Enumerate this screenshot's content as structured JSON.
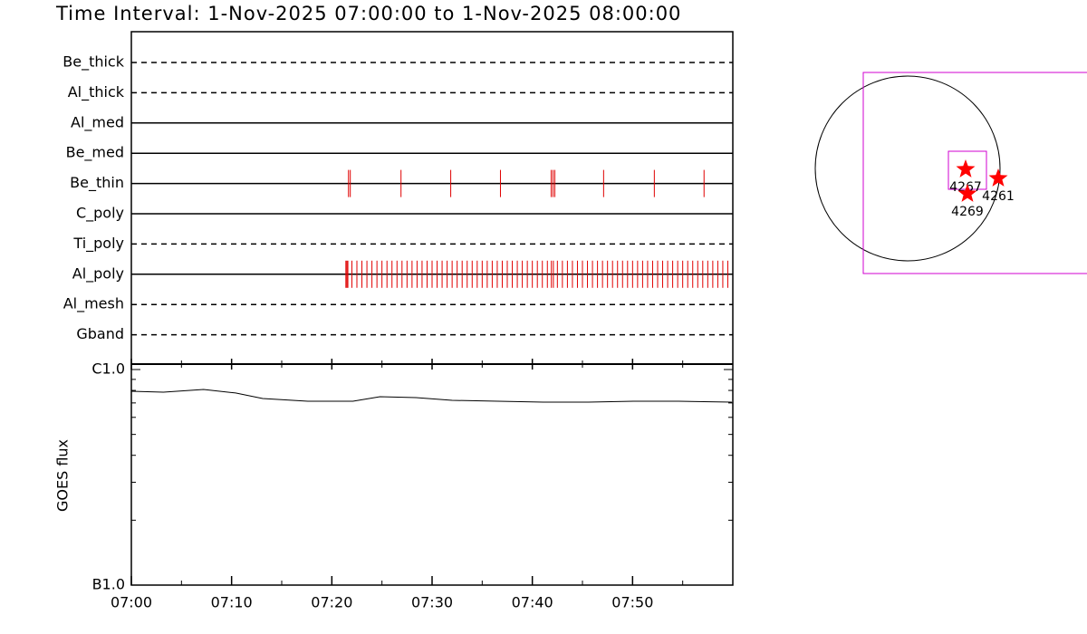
{
  "chart_data": {
    "type": "timeline",
    "title": "Time Interval:  1-Nov-2025 07:00:00 to  1-Nov-2025 08:00:00",
    "xlim": [
      0,
      60
    ],
    "xticks": [
      {
        "value": 0,
        "label": "07:00"
      },
      {
        "value": 10,
        "label": "07:10"
      },
      {
        "value": 20,
        "label": "07:20"
      },
      {
        "value": 30,
        "label": "07:30"
      },
      {
        "value": 40,
        "label": "07:40"
      },
      {
        "value": 50,
        "label": "07:50"
      }
    ],
    "minor_xticks": [
      5,
      15,
      25,
      35,
      45,
      55
    ],
    "exposure_color": "#e00000",
    "filters": [
      {
        "name": "Be_thick",
        "style": "dashed",
        "exposures": []
      },
      {
        "name": "Al_thick",
        "style": "dashed",
        "exposures": []
      },
      {
        "name": "Al_med",
        "style": "solid",
        "exposures": []
      },
      {
        "name": "Be_med",
        "style": "solid",
        "exposures": []
      },
      {
        "name": "Be_thin",
        "style": "solid",
        "exposures": [
          21.66,
          21.84,
          26.9,
          31.86,
          36.82,
          41.88,
          42.06,
          42.24,
          47.11,
          52.17,
          57.13
        ]
      },
      {
        "name": "C_poly",
        "style": "solid",
        "exposures": []
      },
      {
        "name": "Ti_poly",
        "style": "dashed",
        "exposures": []
      },
      {
        "name": "Al_poly",
        "style": "solid",
        "exposures": [
          21.4,
          21.5,
          21.6,
          22.0,
          22.5,
          23.0,
          23.5,
          24.0,
          24.5,
          25.0,
          25.5,
          26.0,
          26.5,
          27.0,
          27.5,
          28.0,
          28.5,
          29.0,
          29.5,
          30.0,
          30.5,
          31.0,
          31.5,
          32.0,
          32.5,
          33.0,
          33.5,
          34.0,
          34.5,
          35.0,
          35.5,
          36.0,
          36.5,
          37.0,
          37.5,
          38.0,
          38.5,
          39.0,
          39.5,
          40.0,
          40.5,
          41.0,
          41.5,
          41.9,
          42.1,
          42.5,
          43.0,
          43.5,
          44.0,
          44.5,
          45.0,
          45.5,
          46.0,
          46.5,
          47.0,
          47.5,
          48.0,
          48.5,
          49.0,
          49.5,
          50.0,
          50.5,
          51.0,
          51.5,
          52.0,
          52.5,
          53.0,
          53.5,
          54.0,
          54.5,
          55.0,
          55.5,
          56.0,
          56.5,
          57.0,
          57.5,
          58.0,
          58.5,
          59.0,
          59.5
        ]
      },
      {
        "name": "Al_mesh",
        "style": "dashed",
        "exposures": []
      },
      {
        "name": "Gband",
        "style": "dashed",
        "exposures": []
      }
    ],
    "goes": {
      "ylabel": "GOES flux",
      "log": true,
      "ylim": [
        1e-07,
        1e-06
      ],
      "yticks": [
        {
          "value": 1e-07,
          "label": "B1.0"
        },
        {
          "value": 1e-06,
          "label": "C1.0"
        }
      ],
      "minor_yticks": [
        2e-07,
        3e-07,
        4e-07,
        5e-07,
        6e-07,
        7e-07,
        8e-07,
        9e-07
      ],
      "x": [
        0,
        3.2,
        7.2,
        10.4,
        13.1,
        17.6,
        22.1,
        24.8,
        28.4,
        32.0,
        36.6,
        41.1,
        45.6,
        50.1,
        54.6,
        59.9
      ],
      "values": [
        7.93e-07,
        7.85e-07,
        8.08e-07,
        7.78e-07,
        7.34e-07,
        7.13e-07,
        7.13e-07,
        7.48e-07,
        7.41e-07,
        7.2e-07,
        7.13e-07,
        7.06e-07,
        7.06e-07,
        7.13e-07,
        7.13e-07,
        7.06e-07
      ],
      "color": "#000000"
    },
    "regions": [
      "4267",
      "4261",
      "4269"
    ],
    "region_color": "#ff0000",
    "fov_color": "#d000d0"
  }
}
